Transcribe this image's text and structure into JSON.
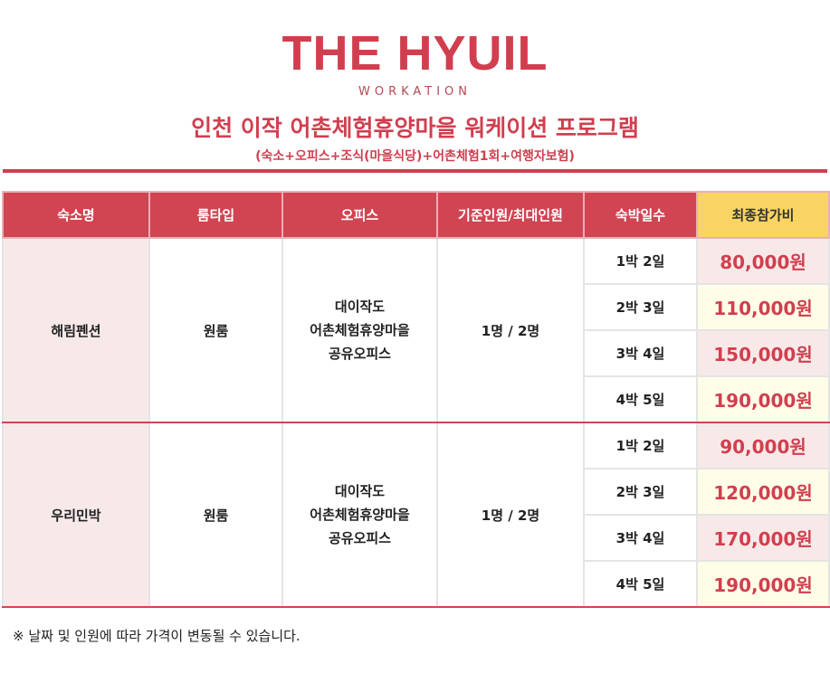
{
  "header": {
    "brand": "THE HYUIL",
    "tagline": "WORKATION",
    "title": "인천 이작 어촌체험휴양마을 워케이션 프로그램",
    "subtitle": "(숙소+오피스+조식(마을식당)+어촌체험1회+여행자보험)"
  },
  "table": {
    "columns": [
      "숙소명",
      "룸타입",
      "오피스",
      "기준인원/최대인원",
      "숙박일수",
      "최종참가비"
    ],
    "groups": [
      {
        "name": "해림펜션",
        "room_type": "원룸",
        "office": [
          "대이작도",
          "어촌체험휴양마을",
          "공유오피스"
        ],
        "capacity": "1명 / 2명",
        "options": [
          {
            "nights": "1박 2일",
            "price": "80,000원"
          },
          {
            "nights": "2박 3일",
            "price": "110,000원"
          },
          {
            "nights": "3박 4일",
            "price": "150,000원"
          },
          {
            "nights": "4박 5일",
            "price": "190,000원"
          }
        ]
      },
      {
        "name": "우리민박",
        "room_type": "원룸",
        "office": [
          "대이작도",
          "어촌체험휴양마을",
          "공유오피스"
        ],
        "capacity": "1명 / 2명",
        "options": [
          {
            "nights": "1박 2일",
            "price": "90,000원"
          },
          {
            "nights": "2박 3일",
            "price": "120,000원"
          },
          {
            "nights": "3박 4일",
            "price": "170,000원"
          },
          {
            "nights": "4박 5일",
            "price": "190,000원"
          }
        ]
      }
    ]
  },
  "footnote": "※ 날짜 및 인원에 따라 가격이 변동될 수 있습니다."
}
